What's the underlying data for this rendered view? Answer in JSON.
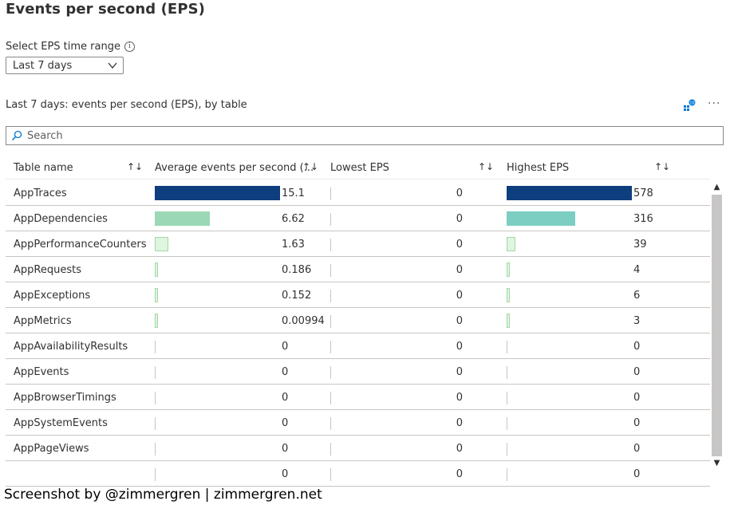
{
  "page": {
    "title": "Events per second (EPS)",
    "range_label": "Select EPS time range",
    "range_value": "Last 7 days",
    "section_title": "Last 7 days: events per second (EPS), by table",
    "search_placeholder": "Search",
    "more_label": "···",
    "footer": "Screenshot by @zimmergren | zimmergren.net"
  },
  "columns": [
    {
      "label": "Table name"
    },
    {
      "label": "Average events per second (..."
    },
    {
      "label": "Lowest EPS"
    },
    {
      "label": "Highest EPS"
    }
  ],
  "colors": {
    "avg_high": "#0f3e7e",
    "avg_mid": "#9bd8b5",
    "avg_low": "#def5df",
    "max_high": "#0f3e7e",
    "max_mid": "#7ccdc2",
    "max_low": "#def5df",
    "bar_border": "#a6d7a8"
  },
  "rows": [
    {
      "name": "AppTraces",
      "avg": "15.1",
      "low": "0",
      "high": "578"
    },
    {
      "name": "AppDependencies",
      "avg": "6.62",
      "low": "0",
      "high": "316"
    },
    {
      "name": "AppPerformanceCounters",
      "avg": "1.63",
      "low": "0",
      "high": "39"
    },
    {
      "name": "AppRequests",
      "avg": "0.186",
      "low": "0",
      "high": "4"
    },
    {
      "name": "AppExceptions",
      "avg": "0.152",
      "low": "0",
      "high": "6"
    },
    {
      "name": "AppMetrics",
      "avg": "0.00994",
      "low": "0",
      "high": "3"
    },
    {
      "name": "AppAvailabilityResults",
      "avg": "0",
      "low": "0",
      "high": "0"
    },
    {
      "name": "AppEvents",
      "avg": "0",
      "low": "0",
      "high": "0"
    },
    {
      "name": "AppBrowserTimings",
      "avg": "0",
      "low": "0",
      "high": "0"
    },
    {
      "name": "AppSystemEvents",
      "avg": "0",
      "low": "0",
      "high": "0"
    },
    {
      "name": "AppPageViews",
      "avg": "0",
      "low": "0",
      "high": "0"
    },
    {
      "name": "",
      "avg": "0",
      "low": "0",
      "high": "0"
    }
  ]
}
